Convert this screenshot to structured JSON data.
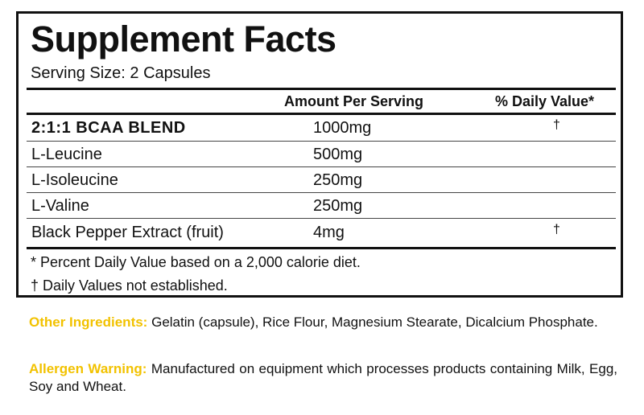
{
  "panel": {
    "title": "Supplement Facts",
    "serving_size": "Serving Size: 2 Capsules",
    "col_amount": "Amount Per Serving",
    "col_dv": "% Daily Value*",
    "rows": [
      {
        "name": "2:1:1 BCAA BLEND",
        "amount": "1000mg",
        "dv": "†"
      },
      {
        "name": "L-Leucine",
        "amount": "500mg",
        "dv": ""
      },
      {
        "name": "L-Isoleucine",
        "amount": "250mg",
        "dv": ""
      },
      {
        "name": "L-Valine",
        "amount": "250mg",
        "dv": ""
      },
      {
        "name": "Black Pepper Extract (fruit)",
        "amount": "4mg",
        "dv": "†"
      }
    ],
    "footnote_1": "* Percent Daily Value based on a 2,000 calorie diet.",
    "footnote_2": "† Daily Values not established."
  },
  "other_ingredients": {
    "label": "Other Ingredients:",
    "text": "Gelatin (capsule), Rice Flour, Magnesium Stearate, Dicalcium Phosphate."
  },
  "allergen_warning": {
    "label": "Allergen Warning:",
    "text": "Manufactured on equipment which processes products containing Milk, Egg, Soy and Wheat."
  },
  "colors": {
    "label_accent": "#f2c200",
    "text": "#111111",
    "border": "#111111"
  }
}
